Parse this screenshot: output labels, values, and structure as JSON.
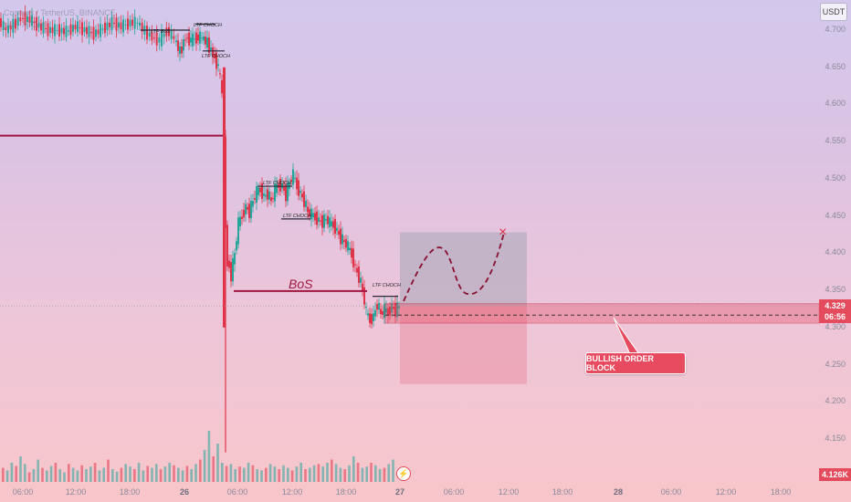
{
  "header": {
    "pair": "Cosmos / TetherUS, BINANCE",
    "volume": "Vol · ATOM"
  },
  "currency_button": "USDT",
  "price_axis": [
    "4.700",
    "4.650",
    "4.600",
    "4.550",
    "4.500",
    "4.450",
    "4.400",
    "4.350",
    "4.300",
    "4.250",
    "4.200",
    "4.150"
  ],
  "current_price": {
    "value": "4.329",
    "countdown": "06:56"
  },
  "volume_tag": "4.126K",
  "time_axis": [
    {
      "label": "06:00",
      "bold": false
    },
    {
      "label": "12:00",
      "bold": false
    },
    {
      "label": "18:00",
      "bold": false
    },
    {
      "label": "26",
      "bold": true
    },
    {
      "label": "06:00",
      "bold": false
    },
    {
      "label": "12:00",
      "bold": false
    },
    {
      "label": "18:00",
      "bold": false
    },
    {
      "label": "27",
      "bold": true
    },
    {
      "label": "06:00",
      "bold": false
    },
    {
      "label": "12:00",
      "bold": false
    },
    {
      "label": "18:00",
      "bold": false
    },
    {
      "label": "28",
      "bold": true
    },
    {
      "label": "06:00",
      "bold": false
    },
    {
      "label": "12:00",
      "bold": false
    },
    {
      "label": "18:00",
      "bold": false
    }
  ],
  "annotations": {
    "bos": "BoS",
    "choch": [
      "LTF BoS",
      "LTF CHOCH",
      "LTF CHOCH",
      "LTF CHOCH",
      "LTF CHOCH",
      "LTF CHOCH"
    ],
    "order_block": "BULLISH ORDER BLOCK",
    "target_marker": "×"
  },
  "colors": {
    "bull": "#26a69a",
    "bear": "#e0344a",
    "order_block": "#e84a5f",
    "bos_line": "#a01640"
  },
  "chart_data": {
    "type": "candlestick",
    "y_unit": "USDT",
    "ylim": [
      4.12,
      4.73
    ],
    "current_price": 4.329,
    "order_block_zone": [
      4.306,
      4.322
    ],
    "bos_level": 4.349,
    "prior_level": 4.558,
    "projection_box": {
      "top": 4.428,
      "middle": 4.329,
      "bottom": 4.224
    },
    "price_path": [
      [
        0,
        4.712
      ],
      [
        8,
        4.7
      ],
      [
        16,
        4.707
      ],
      [
        24,
        4.716
      ],
      [
        34,
        4.714
      ],
      [
        44,
        4.705
      ],
      [
        54,
        4.7
      ],
      [
        64,
        4.7
      ],
      [
        74,
        4.698
      ],
      [
        84,
        4.705
      ],
      [
        94,
        4.7
      ],
      [
        104,
        4.695
      ],
      [
        114,
        4.702
      ],
      [
        124,
        4.71
      ],
      [
        134,
        4.705
      ],
      [
        144,
        4.71
      ],
      [
        152,
        4.71
      ],
      [
        160,
        4.698
      ],
      [
        168,
        4.69
      ],
      [
        176,
        4.686
      ],
      [
        184,
        4.7
      ],
      [
        192,
        4.688
      ],
      [
        198,
        4.67
      ],
      [
        204,
        4.69
      ],
      [
        210,
        4.686
      ],
      [
        216,
        4.69
      ],
      [
        222,
        4.69
      ],
      [
        228,
        4.682
      ],
      [
        234,
        4.668
      ],
      [
        240,
        4.65
      ],
      [
        244,
        4.615
      ],
      [
        246,
        4.56
      ],
      [
        248,
        4.43
      ],
      [
        250,
        4.39
      ],
      [
        254,
        4.37
      ],
      [
        258,
        4.4
      ],
      [
        262,
        4.44
      ],
      [
        266,
        4.45
      ],
      [
        270,
        4.462
      ],
      [
        274,
        4.455
      ],
      [
        278,
        4.47
      ],
      [
        282,
        4.482
      ],
      [
        286,
        4.486
      ],
      [
        290,
        4.476
      ],
      [
        294,
        4.48
      ],
      [
        298,
        4.47
      ],
      [
        302,
        4.485
      ],
      [
        306,
        4.492
      ],
      [
        310,
        4.49
      ],
      [
        314,
        4.478
      ],
      [
        318,
        4.495
      ],
      [
        322,
        4.505
      ],
      [
        326,
        4.49
      ],
      [
        330,
        4.48
      ],
      [
        334,
        4.47
      ],
      [
        338,
        4.455
      ],
      [
        342,
        4.452
      ],
      [
        346,
        4.448
      ],
      [
        350,
        4.444
      ],
      [
        354,
        4.442
      ],
      [
        358,
        4.446
      ],
      [
        362,
        4.44
      ],
      [
        366,
        4.438
      ],
      [
        370,
        4.43
      ],
      [
        374,
        4.42
      ],
      [
        378,
        4.415
      ],
      [
        382,
        4.408
      ],
      [
        386,
        4.398
      ],
      [
        390,
        4.38
      ],
      [
        394,
        4.368
      ],
      [
        398,
        4.35
      ],
      [
        402,
        4.32
      ],
      [
        406,
        4.31
      ],
      [
        410,
        4.315
      ],
      [
        414,
        4.332
      ],
      [
        418,
        4.318
      ],
      [
        422,
        4.324
      ],
      [
        426,
        4.32
      ],
      [
        430,
        4.328
      ],
      [
        434,
        4.322
      ],
      [
        438,
        4.329
      ]
    ],
    "volume_bars": [
      22,
      18,
      30,
      25,
      40,
      28,
      15,
      20,
      35,
      22,
      18,
      25,
      30,
      20,
      15,
      28,
      22,
      18,
      26,
      20,
      24,
      30,
      18,
      22,
      35,
      20,
      16,
      22,
      28,
      24,
      20,
      30,
      18,
      25,
      22,
      28,
      20,
      24,
      30,
      26,
      22,
      18,
      25,
      20,
      28,
      35,
      50,
      80,
      40,
      60,
      30,
      25,
      28,
      20,
      24,
      22,
      30,
      26,
      20,
      18,
      22,
      28,
      24,
      20,
      26,
      22,
      18,
      24,
      30,
      20,
      22,
      26,
      28,
      24,
      30,
      35,
      28,
      22,
      20,
      26,
      40,
      30,
      22,
      24,
      30,
      26,
      20,
      22,
      28,
      35
    ]
  }
}
